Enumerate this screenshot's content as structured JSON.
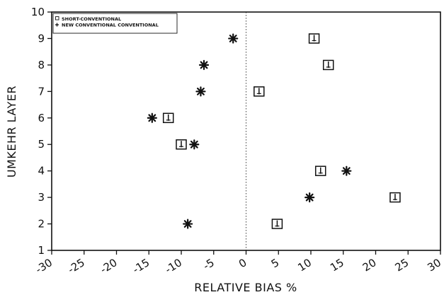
{
  "chart_data": {
    "type": "scatter",
    "xlabel": "RELATIVE BIAS %",
    "ylabel": "UMKEHR LAYER",
    "xlim": [
      -30,
      30
    ],
    "ylim": [
      1,
      10
    ],
    "x_ticks": [
      -30,
      -25,
      -20,
      -15,
      -10,
      -5,
      0,
      5,
      10,
      15,
      20,
      25,
      30
    ],
    "y_ticks": [
      1,
      2,
      3,
      4,
      5,
      6,
      7,
      8,
      9,
      10
    ],
    "x_tick_labels": [
      "-30",
      "-25",
      "-20",
      "-15",
      "-10",
      "-5",
      "0",
      "5",
      "10",
      "15",
      "20",
      "25",
      "30"
    ],
    "y_tick_labels": [
      "1",
      "2",
      "3",
      "4",
      "5",
      "6",
      "7",
      "8",
      "9",
      "10"
    ],
    "reference_line_x": 0,
    "legend_position": "top-left",
    "series": [
      {
        "name": "SHORT-CONVENTIONAL",
        "marker": "square",
        "points": [
          {
            "x": 4.8,
            "y": 2
          },
          {
            "x": 23.0,
            "y": 3
          },
          {
            "x": 11.5,
            "y": 4
          },
          {
            "x": -10.0,
            "y": 5
          },
          {
            "x": -12.0,
            "y": 6
          },
          {
            "x": 2.0,
            "y": 7
          },
          {
            "x": 12.7,
            "y": 8
          },
          {
            "x": 10.5,
            "y": 9
          }
        ]
      },
      {
        "name": "NEW CONVENTIONAL CONVENTIONAL",
        "marker": "asterisk",
        "points": [
          {
            "x": -9.0,
            "y": 2
          },
          {
            "x": 9.8,
            "y": 3
          },
          {
            "x": 15.5,
            "y": 4
          },
          {
            "x": -8.0,
            "y": 5
          },
          {
            "x": -14.5,
            "y": 6
          },
          {
            "x": -7.0,
            "y": 7
          },
          {
            "x": -6.5,
            "y": 8
          },
          {
            "x": -2.0,
            "y": 9
          }
        ]
      }
    ]
  }
}
